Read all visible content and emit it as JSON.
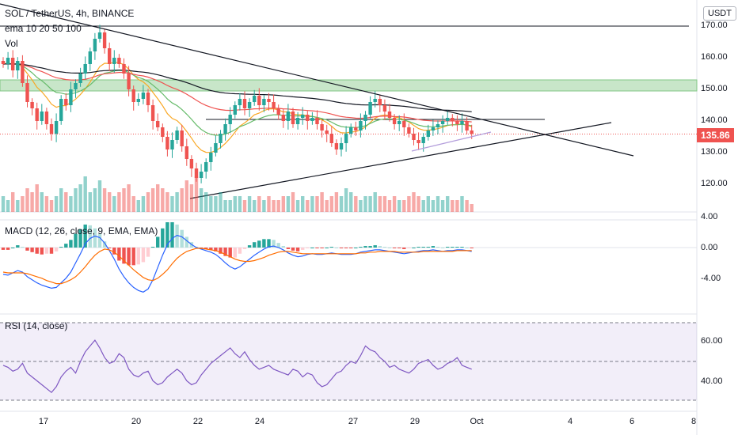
{
  "header": {
    "symbol_line": "SOL / TetherUS, 4h, BINANCE",
    "ema_line": "ema 10 20 50 100",
    "vol_label": "Vol"
  },
  "currency_badge": "USDT",
  "last_price": "135.86",
  "colors": {
    "up": "#26a69a",
    "down": "#ef5350",
    "macd_line": "#2962ff",
    "signal_line": "#ff6d00",
    "rsi_line": "#7e57c2",
    "zone": "#c8e6c9"
  },
  "chart_data": [
    {
      "type": "candlestick",
      "title": "SOL / TetherUS, 4h, BINANCE",
      "ylim": [
        110,
        175
      ],
      "y_ticks": [
        "170.00",
        "160.00",
        "150.00",
        "140.00",
        "130.00",
        "120.00"
      ],
      "x_ticks": [
        "17",
        "20",
        "22",
        "24",
        "27",
        "29",
        "Oct",
        "4",
        "6",
        "8"
      ],
      "resistance_zone": [
        149.5,
        153
      ],
      "horizontal_levels": [
        170,
        140.5
      ],
      "last_price": 135.86,
      "close": [
        158,
        160,
        156,
        159,
        152,
        146,
        144,
        140,
        143,
        139,
        136,
        140,
        147,
        145,
        150,
        152,
        155,
        158,
        162,
        166,
        168,
        163,
        158,
        160,
        158,
        155,
        150,
        146,
        147,
        149,
        145,
        140,
        138,
        135,
        131,
        134,
        137,
        132,
        128,
        125,
        122,
        124,
        127,
        130,
        133,
        136,
        139,
        142,
        145,
        147,
        144,
        146,
        148,
        145,
        147,
        146,
        144,
        142,
        140,
        143,
        139,
        141,
        142,
        140,
        141,
        139,
        137,
        136,
        133,
        131,
        133,
        136,
        138,
        137,
        140,
        142,
        146,
        147,
        145,
        143,
        141,
        139,
        140,
        138,
        136,
        134,
        133,
        135,
        137,
        138,
        139,
        140,
        141,
        140,
        139,
        140,
        137,
        136
      ]
    },
    {
      "type": "bar",
      "title": "Vol",
      "values": [
        4,
        3,
        5,
        3,
        4,
        6,
        5,
        7,
        5,
        4,
        3,
        4,
        6,
        5,
        4,
        6,
        7,
        9,
        5,
        6,
        8,
        6,
        5,
        4,
        5,
        6,
        7,
        4,
        3,
        4,
        5,
        6,
        7,
        6,
        5,
        4,
        5,
        6,
        8,
        7,
        9,
        6,
        5,
        4,
        4,
        5,
        3,
        3,
        4,
        4,
        3,
        4,
        3,
        4,
        3,
        4,
        3,
        3,
        4,
        4,
        5,
        3,
        4,
        3,
        4,
        4,
        5,
        3,
        4,
        5,
        4,
        6,
        5,
        4,
        3,
        4,
        4,
        5,
        4,
        4,
        3,
        4,
        3,
        3,
        4,
        5,
        4,
        3,
        4,
        3,
        4,
        3,
        4,
        3,
        3,
        4,
        3,
        2
      ]
    },
    {
      "type": "line",
      "title": "MACD (12, 26, close, 9, EMA, EMA)",
      "ylim": [
        -6.5,
        4.5
      ],
      "y_ticks": [
        "4.00",
        "0.00",
        "-4.00"
      ],
      "series": [
        {
          "values": [
            -3.5,
            -3.6,
            -3.3,
            -3.0,
            -3.2,
            -3.8,
            -4.2,
            -4.6,
            -4.9,
            -5.1,
            -5.3,
            -5.2,
            -4.6,
            -4.0,
            -3.2,
            -2.0,
            -0.8,
            0.5,
            1.2,
            1.5,
            1.3,
            0.6,
            -0.4,
            -1.5,
            -2.8,
            -3.8,
            -4.6,
            -5.2,
            -5.6,
            -5.8,
            -5.4,
            -4.2,
            -2.6,
            -1.0,
            0.4,
            1.2,
            1.6,
            1.4,
            0.9,
            0.4,
            0.0,
            -0.2,
            -0.4,
            -0.6,
            -0.9,
            -1.4,
            -2.0,
            -2.5,
            -2.8,
            -2.5,
            -2.0,
            -1.5,
            -1.0,
            -0.6,
            -0.2,
            0.1,
            0.2,
            0.0,
            -0.3,
            -0.7,
            -1.0,
            -1.2,
            -1.1,
            -0.9,
            -0.8,
            -0.9,
            -0.9,
            -0.8,
            -0.7,
            -0.8,
            -0.9,
            -0.9,
            -0.9,
            -0.8,
            -0.6,
            -0.5,
            -0.4,
            -0.3,
            -0.3,
            -0.4,
            -0.5,
            -0.6,
            -0.7,
            -0.8,
            -0.7,
            -0.6,
            -0.5,
            -0.4,
            -0.4,
            -0.3,
            -0.4,
            -0.5,
            -0.4,
            -0.4,
            -0.3,
            -0.3,
            -0.4,
            -0.5
          ]
        },
        {
          "values": [
            -3.2,
            -3.3,
            -3.3,
            -3.3,
            -3.3,
            -3.4,
            -3.6,
            -3.8,
            -4.0,
            -4.3,
            -4.5,
            -4.7,
            -4.7,
            -4.5,
            -4.2,
            -3.8,
            -3.2,
            -2.5,
            -1.7,
            -1.0,
            -0.5,
            -0.2,
            -0.3,
            -0.6,
            -1.1,
            -1.7,
            -2.3,
            -2.9,
            -3.4,
            -3.9,
            -4.2,
            -4.3,
            -4.0,
            -3.5,
            -2.9,
            -2.1,
            -1.4,
            -0.9,
            -0.5,
            -0.3,
            -0.1,
            -0.1,
            -0.2,
            -0.3,
            -0.4,
            -0.6,
            -0.9,
            -1.2,
            -1.5,
            -1.7,
            -1.8,
            -1.8,
            -1.7,
            -1.5,
            -1.3,
            -1.0,
            -0.8,
            -0.6,
            -0.5,
            -0.5,
            -0.6,
            -0.7,
            -0.8,
            -0.8,
            -0.8,
            -0.8,
            -0.8,
            -0.8,
            -0.8,
            -0.8,
            -0.8,
            -0.8,
            -0.8,
            -0.8,
            -0.7,
            -0.7,
            -0.6,
            -0.6,
            -0.5,
            -0.5,
            -0.5,
            -0.5,
            -0.6,
            -0.6,
            -0.6,
            -0.6,
            -0.6,
            -0.5,
            -0.5,
            -0.5,
            -0.5,
            -0.5,
            -0.5,
            -0.5,
            -0.4,
            -0.4,
            -0.4,
            -0.4
          ]
        }
      ]
    },
    {
      "type": "line",
      "title": "RSI (14, close)",
      "ylim": [
        30,
        70
      ],
      "y_ticks": [
        "60.00",
        "40.00"
      ],
      "bands": [
        70,
        50,
        30
      ],
      "series": [
        {
          "values": [
            48,
            47,
            45,
            46,
            49,
            44,
            42,
            40,
            38,
            36,
            34,
            37,
            42,
            45,
            47,
            44,
            50,
            55,
            58,
            61,
            57,
            52,
            49,
            50,
            54,
            52,
            46,
            43,
            42,
            44,
            45,
            40,
            38,
            39,
            42,
            44,
            46,
            44,
            40,
            38,
            39,
            43,
            46,
            49,
            51,
            53,
            55,
            57,
            54,
            52,
            55,
            51,
            48,
            46,
            47,
            48,
            46,
            45,
            44,
            43,
            46,
            45,
            42,
            44,
            43,
            39,
            37,
            38,
            41,
            44,
            45,
            48,
            50,
            49,
            53,
            58,
            56,
            55,
            52,
            50,
            47,
            48,
            46,
            45,
            44,
            46,
            49,
            50,
            51,
            48,
            46,
            47,
            49,
            50,
            52,
            48,
            47,
            46
          ]
        }
      ]
    }
  ]
}
